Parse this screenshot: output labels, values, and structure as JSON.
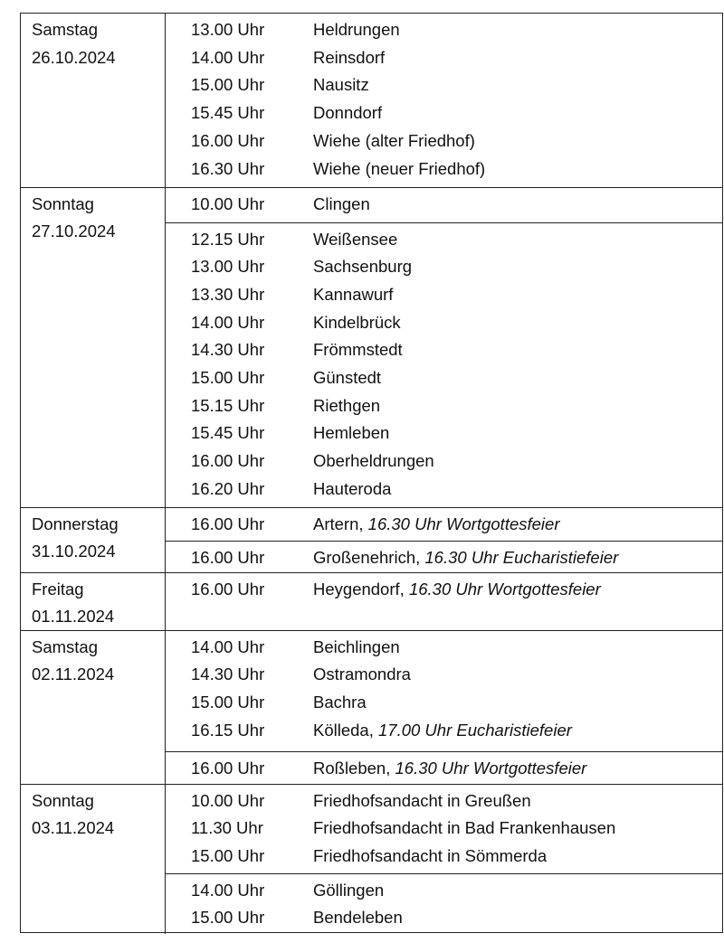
{
  "schedule": [
    {
      "day": "Samstag",
      "date": "26.10.2024",
      "blocks": [
        [
          {
            "time": "13.00 Uhr",
            "place": "Heldrungen"
          },
          {
            "time": "14.00 Uhr",
            "place": "Reinsdorf"
          },
          {
            "time": "15.00 Uhr",
            "place": "Nausitz"
          },
          {
            "time": "15.45 Uhr",
            "place": "Donndorf"
          },
          {
            "time": "16.00 Uhr",
            "place": "Wiehe (alter Friedhof)"
          },
          {
            "time": "16.30 Uhr",
            "place": "Wiehe (neuer Friedhof)"
          }
        ]
      ]
    },
    {
      "day": "Sonntag",
      "date": "27.10.2024",
      "blocks": [
        [
          {
            "time": "10.00 Uhr",
            "place": "Clingen"
          }
        ],
        [
          {
            "time": "12.15 Uhr",
            "place": "Weißensee"
          },
          {
            "time": "13.00 Uhr",
            "place": "Sachsenburg"
          },
          {
            "time": "13.30 Uhr",
            "place": "Kannawurf"
          },
          {
            "time": "14.00 Uhr",
            "place": "Kindelbrück"
          },
          {
            "time": "14.30 Uhr",
            "place": "Frömmstedt"
          },
          {
            "time": "15.00 Uhr",
            "place": "Günstedt"
          },
          {
            "time": "15.15 Uhr",
            "place": "Riethgen"
          },
          {
            "time": "15.45 Uhr",
            "place": "Hemleben"
          },
          {
            "time": "16.00 Uhr",
            "place": "Oberheldrungen"
          },
          {
            "time": "16.20 Uhr",
            "place": "Hauteroda"
          }
        ]
      ]
    },
    {
      "day": "Donnerstag",
      "date": "31.10.2024",
      "blocks": [
        [
          {
            "time": "16.00 Uhr",
            "place": "Artern,",
            "note": "16.30 Uhr Wortgottesfeier"
          }
        ],
        [
          {
            "time": "16.00 Uhr",
            "place": "Großenehrich,",
            "note": "16.30 Uhr Eucharistiefeier"
          }
        ]
      ]
    },
    {
      "day": "Freitag",
      "date": "01.11.2024",
      "blocks": [
        [
          {
            "time": "16.00 Uhr",
            "place": "Heygendorf,",
            "note": "16.30 Uhr Wortgottesfeier"
          }
        ]
      ]
    },
    {
      "day": "Samstag",
      "date": "02.11.2024",
      "blocks": [
        [
          {
            "time": "14.00 Uhr",
            "place": "Beichlingen"
          },
          {
            "time": "14.30 Uhr",
            "place": "Ostramondra"
          },
          {
            "time": "15.00 Uhr",
            "place": "Bachra"
          },
          {
            "time": "16.15 Uhr",
            "place": "Kölleda,",
            "note": "17.00 Uhr Eucharistiefeier"
          }
        ],
        [
          {
            "time": "16.00 Uhr",
            "place": "Roßleben,",
            "note": "16.30 Uhr Wortgottesfeier"
          }
        ]
      ]
    },
    {
      "day": "Sonntag",
      "date": "03.11.2024",
      "blocks": [
        [
          {
            "time": "10.00 Uhr",
            "place": "Friedhofsandacht in Greußen"
          },
          {
            "time": "11.30 Uhr",
            "place": "Friedhofsandacht in Bad Frankenhausen"
          },
          {
            "time": "15.00 Uhr",
            "place": "Friedhofsandacht in Sömmerda"
          }
        ],
        [
          {
            "time": "14.00 Uhr",
            "place": "Göllingen"
          },
          {
            "time": "15.00 Uhr",
            "place": "Bendeleben"
          }
        ]
      ]
    }
  ]
}
